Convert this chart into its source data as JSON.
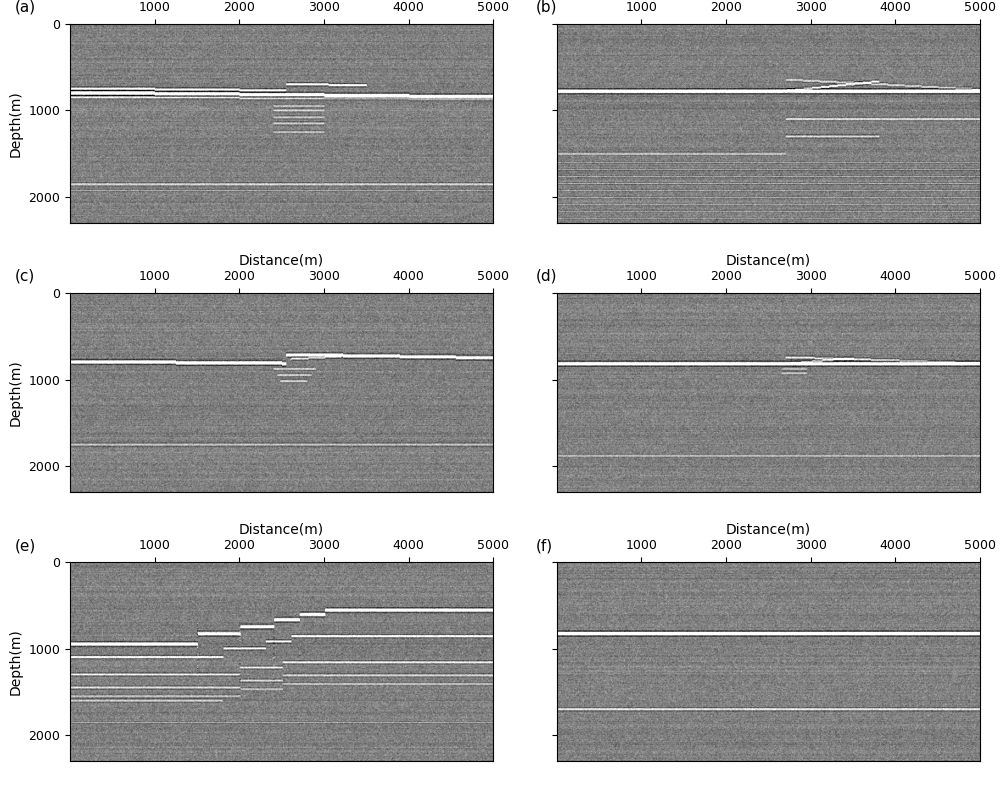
{
  "panels": [
    "(a)",
    "(b)",
    "(c)",
    "(d)",
    "(e)",
    "(f)"
  ],
  "xlabel": "Distance(m)",
  "ylabel": "Depth(m)",
  "xlim": [
    0,
    5000
  ],
  "ylim": [
    2300,
    0
  ],
  "xticks": [
    1000,
    2000,
    3000,
    4000,
    5000
  ],
  "yticks": [
    0,
    1000,
    2000
  ],
  "bg_color": "#b0b0b0",
  "figsize": [
    10.0,
    7.93
  ],
  "dpi": 100,
  "label_fontsize": 10,
  "tick_fontsize": 9,
  "panel_label_fontsize": 11
}
